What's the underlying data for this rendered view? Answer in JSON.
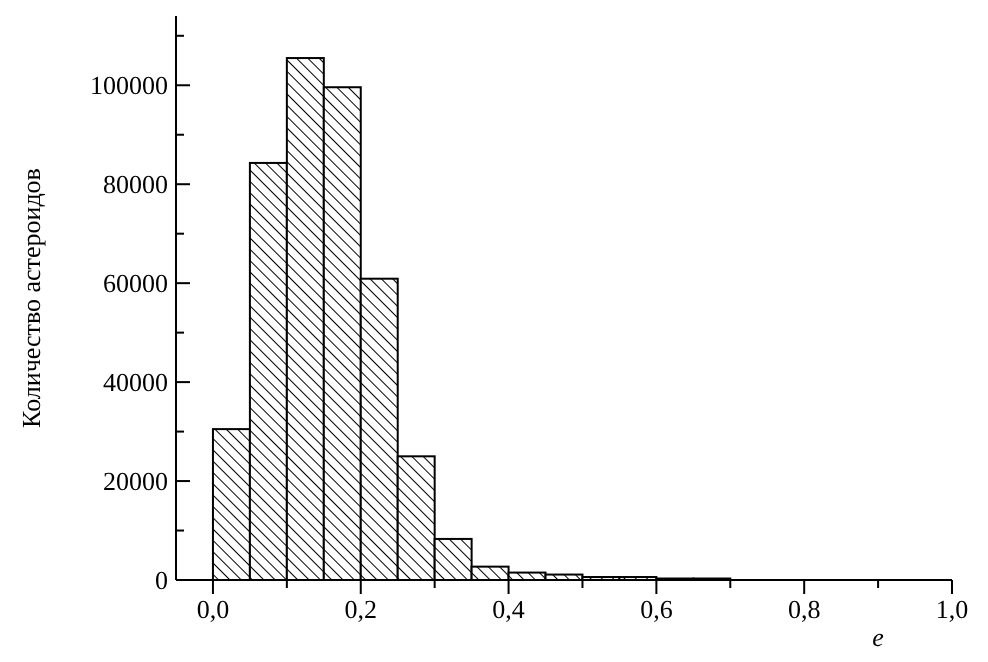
{
  "chart_data": {
    "type": "histogram",
    "xlabel": "e",
    "ylabel": "Количество астероидов",
    "color": "#000000",
    "bins": [
      0,
      0.05,
      0.1,
      0.15,
      0.2,
      0.25,
      0.3,
      0.35,
      0.4,
      0.45,
      0.5,
      0.55,
      0.6,
      0.65,
      0.7
    ],
    "values": [
      30500,
      84300,
      105500,
      99600,
      60900,
      25000,
      8300,
      2700,
      1500,
      1100,
      600,
      600,
      300,
      300
    ],
    "xlim": [
      -0.05,
      1.0
    ],
    "xticks": [
      {
        "value": 0,
        "label": "0,0"
      },
      {
        "value": 0.1,
        "label": null
      },
      {
        "value": 0.2,
        "label": "0,2"
      },
      {
        "value": 0.3,
        "label": null
      },
      {
        "value": 0.4,
        "label": "0,4"
      },
      {
        "value": 0.5,
        "label": null
      },
      {
        "value": 0.6,
        "label": "0,6"
      },
      {
        "value": 0.7,
        "label": null
      },
      {
        "value": 0.8,
        "label": "0,8"
      },
      {
        "value": 0.9,
        "label": null
      },
      {
        "value": 1.0,
        "label": "1,0"
      }
    ],
    "ylim": [
      0,
      114000
    ],
    "yticks": [
      0,
      {
        "value": 10000,
        "label": null
      },
      20000,
      {
        "value": 30000,
        "label": null
      },
      40000,
      {
        "value": 50000,
        "label": null
      },
      60000,
      {
        "value": 70000,
        "label": null
      },
      80000,
      {
        "value": 90000,
        "label": null
      },
      100000,
      {
        "value": 110000,
        "label": null
      }
    ],
    "grid": false
  }
}
